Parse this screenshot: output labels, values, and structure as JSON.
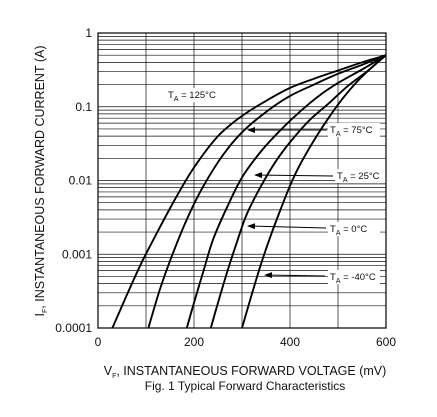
{
  "chart_data": {
    "type": "line",
    "title": "",
    "caption": "Fig. 1  Typical Forward Characteristics",
    "xlabel": {
      "main": "V",
      "sub": "F",
      "rest": ", INSTANTANEOUS FORWARD VOLTAGE (mV)"
    },
    "ylabel": {
      "main": "I",
      "sub": "F",
      "rest": ", INSTANTANEOUS FORWARD CURRENT (A)"
    },
    "xlim": [
      0,
      600
    ],
    "ylim": [
      0.0001,
      1
    ],
    "yscale": "log",
    "grid": true,
    "legend": "none",
    "x_ticks": [
      {
        "value": 0,
        "label": "0"
      },
      {
        "value": 200,
        "label": "200"
      },
      {
        "value": 400,
        "label": "400"
      },
      {
        "value": 600,
        "label": "600"
      }
    ],
    "y_ticks": [
      {
        "value": 0.0001,
        "label": "0.0001"
      },
      {
        "value": 0.001,
        "label": "0.001"
      },
      {
        "value": 0.01,
        "label": "0.01"
      },
      {
        "value": 0.1,
        "label": "0.1"
      },
      {
        "value": 1,
        "label": "1"
      }
    ],
    "series": [
      {
        "name": "125°C",
        "label_prefix": "T",
        "label_sub": "A",
        "label_rest": " = 125°C",
        "x": [
          30,
          60,
          90,
          120,
          160,
          200,
          250,
          300,
          350,
          400,
          450,
          500,
          550,
          600
        ],
        "y": [
          0.0001,
          0.00028,
          0.00075,
          0.0018,
          0.0055,
          0.015,
          0.04,
          0.075,
          0.12,
          0.18,
          0.24,
          0.31,
          0.4,
          0.5
        ]
      },
      {
        "name": "75°C",
        "label_prefix": "T",
        "label_sub": "A",
        "label_rest": " = 75°C",
        "x": [
          105,
          130,
          160,
          190,
          220,
          260,
          300,
          350,
          400,
          450,
          500,
          550,
          600
        ],
        "y": [
          0.0001,
          0.00035,
          0.0012,
          0.0035,
          0.0085,
          0.022,
          0.045,
          0.085,
          0.14,
          0.2,
          0.28,
          0.37,
          0.5
        ]
      },
      {
        "name": "25°C",
        "label_prefix": "T",
        "label_sub": "A",
        "label_rest": " = 25°C",
        "x": [
          185,
          200,
          220,
          240,
          270,
          300,
          340,
          380,
          420,
          460,
          500,
          550,
          600
        ],
        "y": [
          0.0001,
          0.00022,
          0.0006,
          0.0016,
          0.0045,
          0.011,
          0.025,
          0.048,
          0.085,
          0.14,
          0.21,
          0.32,
          0.5
        ]
      },
      {
        "name": "0°C",
        "label_prefix": "T",
        "label_sub": "A",
        "label_rest": " = 0°C",
        "x": [
          235,
          250,
          270,
          290,
          310,
          340,
          370,
          400,
          440,
          480,
          520,
          560,
          600
        ],
        "y": [
          0.0001,
          0.00022,
          0.0006,
          0.0015,
          0.0035,
          0.0085,
          0.018,
          0.033,
          0.065,
          0.11,
          0.19,
          0.3,
          0.5
        ]
      },
      {
        "name": "-40°C",
        "label_prefix": "T",
        "label_sub": "A",
        "label_rest": " = -40°C",
        "x": [
          300,
          320,
          340,
          360,
          380,
          400,
          420,
          450,
          480,
          510,
          540,
          570,
          600
        ],
        "y": [
          0.0001,
          0.00028,
          0.00075,
          0.0018,
          0.004,
          0.0085,
          0.016,
          0.035,
          0.07,
          0.13,
          0.22,
          0.34,
          0.5
        ]
      }
    ]
  }
}
